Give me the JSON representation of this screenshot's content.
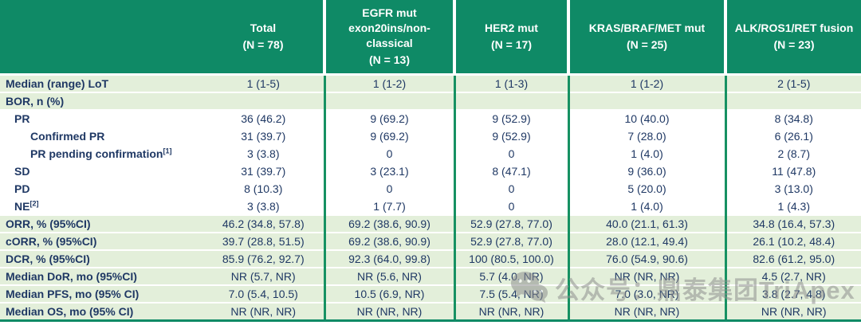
{
  "colors": {
    "header_bg": "#0f8a66",
    "row_shade": "#e3efda",
    "text": "#1f3864",
    "column_separator": "#169162",
    "watermark_gray": "#8f8f8f"
  },
  "table": {
    "columns": [
      {
        "name": "",
        "n": ""
      },
      {
        "name": "Total",
        "n": "(N = 78)"
      },
      {
        "name": "EGFR mut exon20ins/non-classical",
        "n": "(N = 13)"
      },
      {
        "name": "HER2 mut",
        "n": "(N = 17)"
      },
      {
        "name": "KRAS/BRAF/MET mut",
        "n": "(N = 25)"
      },
      {
        "name": "ALK/ROS1/RET fusion",
        "n": "(N = 23)"
      }
    ],
    "rows": [
      {
        "label": "Median (range) LoT",
        "sup": "",
        "indent": 0,
        "shaded": true,
        "values": [
          "1 (1-5)",
          "1 (1-2)",
          "1 (1-3)",
          "1 (1-2)",
          "2 (1-5)"
        ]
      },
      {
        "label": "BOR, n (%)",
        "sup": "",
        "indent": 0,
        "shaded": true,
        "values": [
          "",
          "",
          "",
          "",
          ""
        ]
      },
      {
        "label": "PR",
        "sup": "",
        "indent": 1,
        "shaded": false,
        "values": [
          "36 (46.2)",
          "9 (69.2)",
          "9 (52.9)",
          "10 (40.0)",
          "8 (34.8)"
        ]
      },
      {
        "label": "Confirmed PR",
        "sup": "",
        "indent": 2,
        "shaded": false,
        "values": [
          "31 (39.7)",
          "9 (69.2)",
          "9 (52.9)",
          "7 (28.0)",
          "6 (26.1)"
        ]
      },
      {
        "label": "PR pending confirmation",
        "sup": "[1]",
        "indent": 2,
        "shaded": false,
        "values": [
          "3 (3.8)",
          "0",
          "0",
          "1 (4.0)",
          "2 (8.7)"
        ]
      },
      {
        "label": "SD",
        "sup": "",
        "indent": 1,
        "shaded": false,
        "values": [
          "31 (39.7)",
          "3 (23.1)",
          "8 (47.1)",
          "9 (36.0)",
          "11 (47.8)"
        ]
      },
      {
        "label": "PD",
        "sup": "",
        "indent": 1,
        "shaded": false,
        "values": [
          "8 (10.3)",
          "0",
          "0",
          "5 (20.0)",
          "3 (13.0)"
        ]
      },
      {
        "label": "NE",
        "sup": "[2]",
        "indent": 1,
        "shaded": false,
        "values": [
          "3 (3.8)",
          "1 (7.7)",
          "0",
          "1 (4.0)",
          "1 (4.3)"
        ]
      },
      {
        "label": "ORR, % (95%CI)",
        "sup": "",
        "indent": 0,
        "shaded": true,
        "values": [
          "46.2 (34.8, 57.8)",
          "69.2 (38.6, 90.9)",
          "52.9 (27.8, 77.0)",
          "40.0 (21.1, 61.3)",
          "34.8 (16.4, 57.3)"
        ]
      },
      {
        "label": "cORR, % (95%CI)",
        "sup": "",
        "indent": 0,
        "shaded": true,
        "values": [
          "39.7 (28.8, 51.5)",
          "69.2 (38.6, 90.9)",
          "52.9 (27.8, 77.0)",
          "28.0 (12.1, 49.4)",
          "26.1 (10.2, 48.4)"
        ]
      },
      {
        "label": "DCR, % (95%CI)",
        "sup": "",
        "indent": 0,
        "shaded": true,
        "values": [
          "85.9 (76.2, 92.7)",
          "92.3 (64.0, 99.8)",
          "100 (80.5, 100.0)",
          "76.0 (54.9, 90.6)",
          "82.6 (61.2, 95.0)"
        ]
      },
      {
        "label": "Median DoR, mo (95%CI)",
        "sup": "",
        "indent": 0,
        "shaded": true,
        "values": [
          "NR (5.7, NR)",
          "NR (5.6, NR)",
          "5.7 (4.0, NR)",
          "NR (NR, NR)",
          "4.5 (2.7, NR)"
        ]
      },
      {
        "label": "Median PFS, mo (95% CI)",
        "sup": "",
        "indent": 0,
        "shaded": true,
        "values": [
          "7.0 (5.4, 10.5)",
          "10.5 (6.9, NR)",
          "7.5 (5.4, NR)",
          "7.0 (3.0, NR)",
          "3.8 (2.7, 4.8)"
        ]
      },
      {
        "label": "Median OS, mo (95% CI)",
        "sup": "",
        "indent": 0,
        "shaded": true,
        "values": [
          "NR (NR, NR)",
          "NR (NR, NR)",
          "NR (NR, NR)",
          "NR (NR, NR)",
          "NR (NR, NR)"
        ]
      }
    ]
  },
  "watermark": {
    "icon": "wechat-icon",
    "text": "公众号：鼎泰集团TriApex"
  }
}
